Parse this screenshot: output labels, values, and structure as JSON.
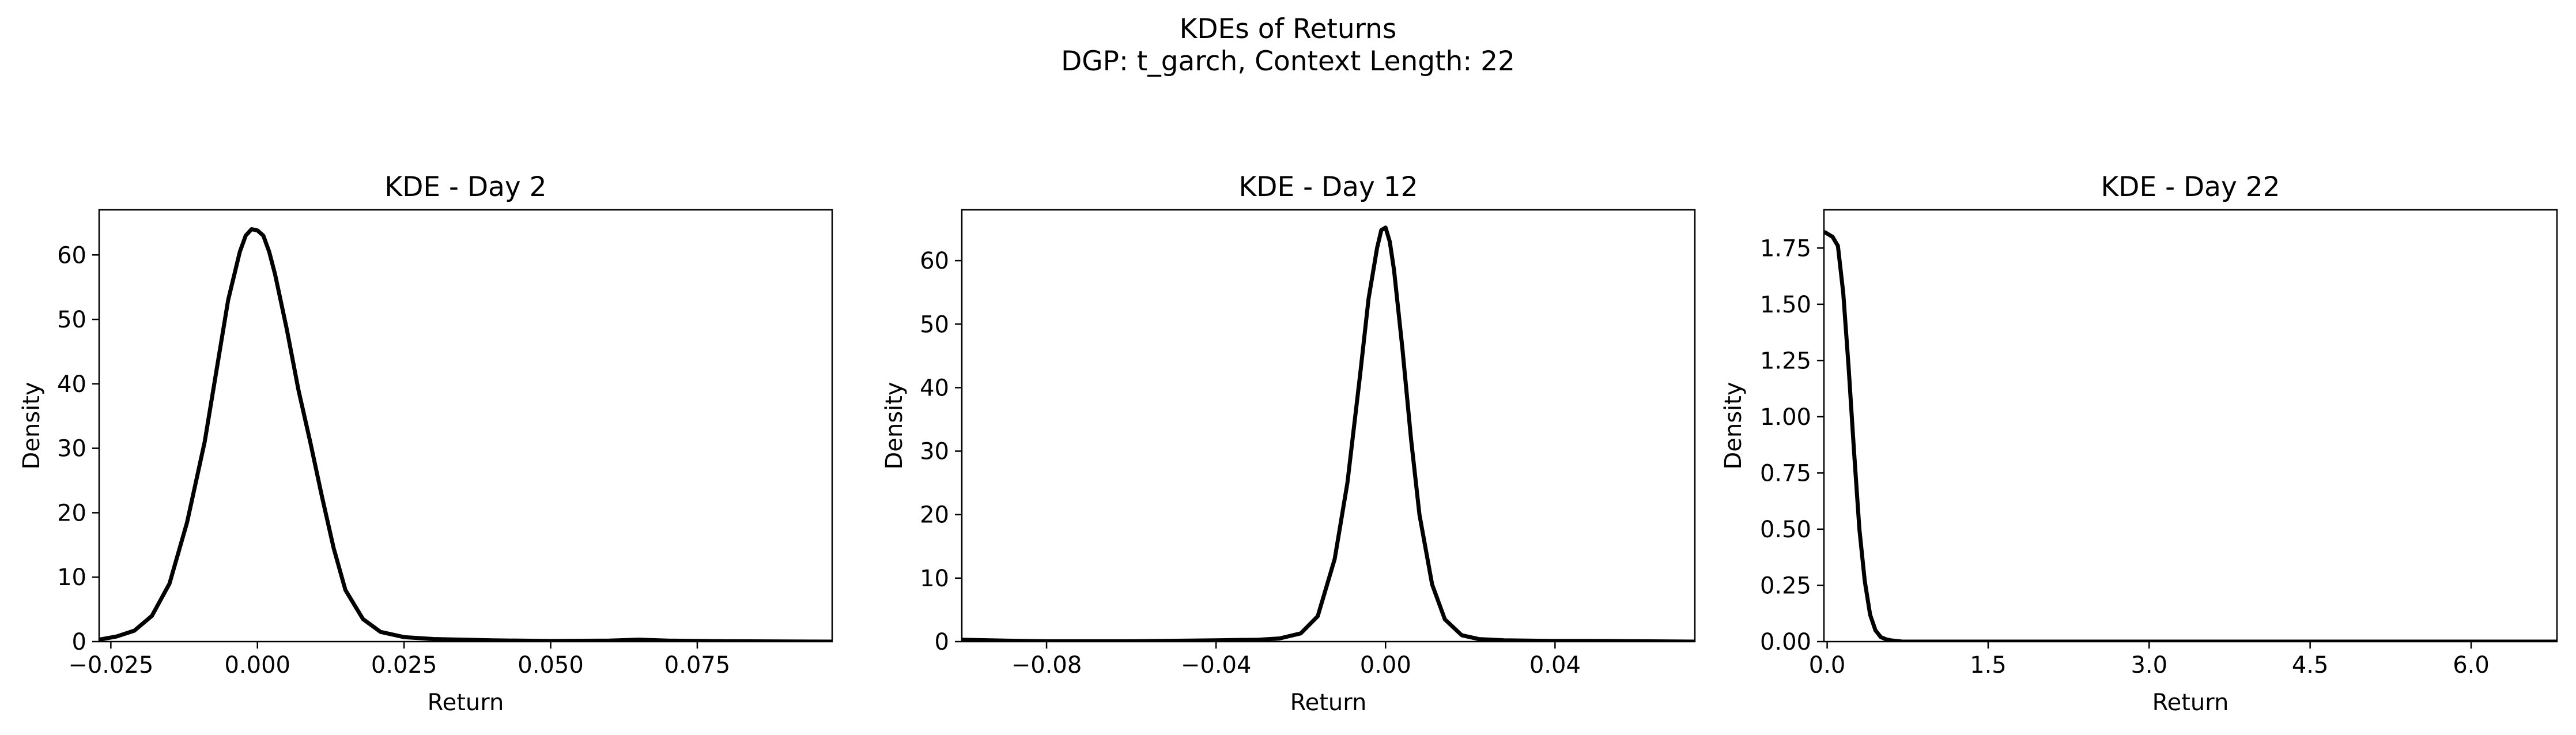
{
  "figure": {
    "title_line1": "KDEs of Returns",
    "title_line2": "DGP: t_garch, Context Length: 22"
  },
  "colors": {
    "line": "#000000",
    "axes": "#000000",
    "background": "#ffffff"
  },
  "chart_data": [
    {
      "type": "line",
      "title": "KDE - Day 2",
      "xlabel": "Return",
      "ylabel": "Density",
      "xlim": [
        -0.027,
        0.098
      ],
      "ylim": [
        0,
        67
      ],
      "xticks": [
        -0.025,
        0.0,
        0.025,
        0.05,
        0.075
      ],
      "xtick_labels": [
        "−0.025",
        "0.000",
        "0.025",
        "0.050",
        "0.075"
      ],
      "yticks": [
        0,
        10,
        20,
        30,
        40,
        50,
        60
      ],
      "ytick_labels": [
        "0",
        "10",
        "20",
        "30",
        "40",
        "50",
        "60"
      ],
      "grid": false,
      "series": [
        {
          "x": [
            -0.027,
            -0.024,
            -0.021,
            -0.018,
            -0.015,
            -0.012,
            -0.009,
            -0.007,
            -0.005,
            -0.003,
            -0.002,
            -0.001,
            0.0,
            0.001,
            0.002,
            0.003,
            0.005,
            0.007,
            0.009,
            0.011,
            0.013,
            0.015,
            0.018,
            0.021,
            0.025,
            0.03,
            0.04,
            0.05,
            0.06,
            0.065,
            0.07,
            0.08,
            0.098
          ],
          "y": [
            0.3,
            0.8,
            1.7,
            4.0,
            9.0,
            18.5,
            31.0,
            42.0,
            53.0,
            60.5,
            63.0,
            64.0,
            63.8,
            63.0,
            60.5,
            57.0,
            48.5,
            39.0,
            31.0,
            22.5,
            14.5,
            8.0,
            3.5,
            1.5,
            0.7,
            0.4,
            0.2,
            0.1,
            0.15,
            0.3,
            0.15,
            0.05,
            0.0
          ]
        }
      ]
    },
    {
      "type": "line",
      "title": "KDE - Day 12",
      "xlabel": "Return",
      "ylabel": "Density",
      "xlim": [
        -0.1,
        0.073
      ],
      "ylim": [
        0,
        68
      ],
      "xticks": [
        -0.08,
        -0.04,
        0.0,
        0.04
      ],
      "xtick_labels": [
        "−0.08",
        "−0.04",
        "0.00",
        "0.04"
      ],
      "yticks": [
        0,
        10,
        20,
        30,
        40,
        50,
        60
      ],
      "ytick_labels": [
        "0",
        "10",
        "20",
        "30",
        "40",
        "50",
        "60"
      ],
      "grid": false,
      "series": [
        {
          "x": [
            -0.1,
            -0.09,
            -0.08,
            -0.06,
            -0.04,
            -0.03,
            -0.025,
            -0.02,
            -0.016,
            -0.012,
            -0.009,
            -0.006,
            -0.004,
            -0.002,
            -0.001,
            0.0,
            0.001,
            0.002,
            0.004,
            0.006,
            0.008,
            0.011,
            0.014,
            0.018,
            0.022,
            0.028,
            0.04,
            0.05,
            0.073
          ],
          "y": [
            0.3,
            0.15,
            0.05,
            0.05,
            0.2,
            0.3,
            0.5,
            1.3,
            4.0,
            13.0,
            25.0,
            42.0,
            54.0,
            62.0,
            64.8,
            65.2,
            63.0,
            58.5,
            46.0,
            32.0,
            20.0,
            9.0,
            3.5,
            1.0,
            0.4,
            0.2,
            0.1,
            0.1,
            0.0
          ]
        }
      ]
    },
    {
      "type": "line",
      "title": "KDE - Day 22",
      "xlabel": "Return",
      "ylabel": "Density",
      "xlim": [
        -0.03,
        6.8
      ],
      "ylim": [
        0,
        1.92
      ],
      "xticks": [
        0.0,
        1.5,
        3.0,
        4.5,
        6.0
      ],
      "xtick_labels": [
        "0.0",
        "1.5",
        "3.0",
        "4.5",
        "6.0"
      ],
      "yticks": [
        0.0,
        0.25,
        0.5,
        0.75,
        1.0,
        1.25,
        1.5,
        1.75
      ],
      "ytick_labels": [
        "0.00",
        "0.25",
        "0.50",
        "0.75",
        "1.00",
        "1.25",
        "1.50",
        "1.75"
      ],
      "grid": false,
      "series": [
        {
          "x": [
            -0.02,
            0.05,
            0.1,
            0.15,
            0.2,
            0.25,
            0.3,
            0.35,
            0.4,
            0.45,
            0.5,
            0.55,
            0.6,
            0.7,
            0.8,
            1.0,
            1.5,
            3.0,
            6.8
          ],
          "y": [
            1.82,
            1.8,
            1.76,
            1.55,
            1.22,
            0.85,
            0.5,
            0.27,
            0.12,
            0.05,
            0.02,
            0.01,
            0.005,
            0.0,
            0.0,
            0.0,
            0.0,
            0.0,
            0.0
          ]
        }
      ]
    }
  ]
}
